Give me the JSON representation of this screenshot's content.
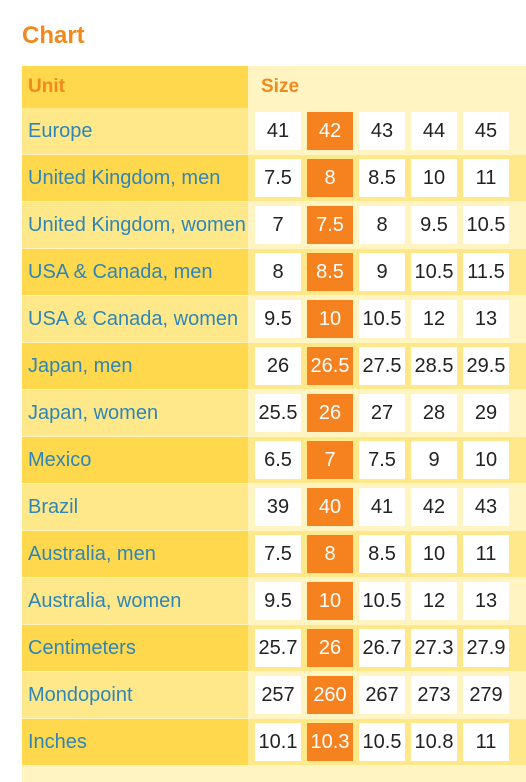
{
  "title": "Chart",
  "header": {
    "unit": "Unit",
    "size": "Size"
  },
  "rows": [
    {
      "unit": "Europe",
      "values": [
        "41",
        "42",
        "43",
        "44",
        "45"
      ]
    },
    {
      "unit": "United Kingdom, men",
      "values": [
        "7.5",
        "8",
        "8.5",
        "10",
        "11"
      ]
    },
    {
      "unit": "United Kingdom, women",
      "values": [
        "7",
        "7.5",
        "8",
        "9.5",
        "10.5"
      ]
    },
    {
      "unit": "USA & Canada, men",
      "values": [
        "8",
        "8.5",
        "9",
        "10.5",
        "11.5"
      ]
    },
    {
      "unit": "USA & Canada, women",
      "values": [
        "9.5",
        "10",
        "10.5",
        "12",
        "13"
      ]
    },
    {
      "unit": "Japan, men",
      "values": [
        "26",
        "26.5",
        "27.5",
        "28.5",
        "29.5"
      ]
    },
    {
      "unit": "Japan, women",
      "values": [
        "25.5",
        "26",
        "27",
        "28",
        "29"
      ]
    },
    {
      "unit": "Mexico",
      "values": [
        "6.5",
        "7",
        "7.5",
        "9",
        "10"
      ]
    },
    {
      "unit": "Brazil",
      "values": [
        "39",
        "40",
        "41",
        "42",
        "43"
      ]
    },
    {
      "unit": "Australia, men",
      "values": [
        "7.5",
        "8",
        "8.5",
        "10",
        "11"
      ]
    },
    {
      "unit": "Australia, women",
      "values": [
        "9.5",
        "10",
        "10.5",
        "12",
        "13"
      ]
    },
    {
      "unit": "Centimeters",
      "values": [
        "25.7",
        "26",
        "26.7",
        "27.3",
        "27.9"
      ]
    },
    {
      "unit": "Mondopoint",
      "values": [
        "257",
        "260",
        "267",
        "273",
        "279"
      ]
    },
    {
      "unit": "Inches",
      "values": [
        "10.1",
        "10.3",
        "10.5",
        "10.8",
        "11"
      ]
    }
  ],
  "highlight_column": 1,
  "colors": {
    "title": "#f08a1c",
    "unit_text": "#2e86b8",
    "highlight": "#f5821f",
    "row_light": "#fff4c2",
    "row_dark": "#ffe88a",
    "header_bg": "#ffd84d"
  }
}
